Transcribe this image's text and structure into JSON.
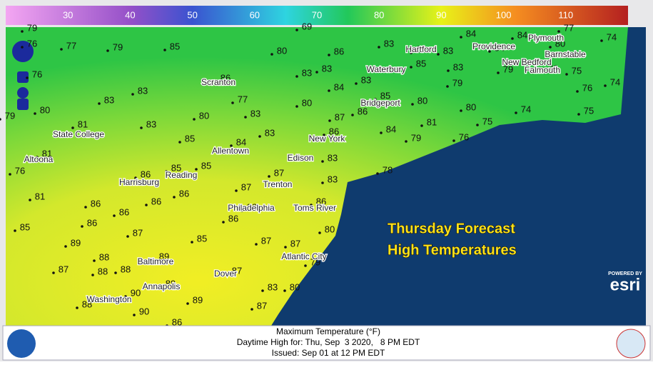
{
  "legend": {
    "ticks": [
      30,
      40,
      50,
      60,
      70,
      80,
      90,
      100,
      110
    ],
    "range": [
      20,
      120
    ]
  },
  "map": {
    "stations": [
      79,
      76,
      77,
      79,
      85,
      69,
      80,
      86,
      83,
      86,
      83,
      84,
      84,
      84,
      77,
      80,
      74,
      76,
      80,
      79,
      81,
      83,
      83,
      83,
      86,
      77,
      80,
      83,
      85,
      84,
      83,
      80,
      83,
      83,
      84,
      87,
      86,
      86,
      83,
      85,
      80,
      83,
      85,
      79,
      79,
      78,
      75,
      76,
      74,
      80,
      74,
      75,
      81,
      75,
      84,
      79,
      76,
      78,
      81,
      76,
      86,
      85,
      85,
      87,
      83,
      83,
      86,
      87,
      81,
      86,
      86,
      86,
      88,
      86,
      86,
      85,
      86,
      87,
      85,
      80,
      89,
      87,
      87,
      88,
      89,
      88,
      88,
      87,
      87,
      79,
      89,
      83,
      80,
      90,
      89,
      88,
      87,
      90,
      86
    ],
    "cities": [
      "Scranton",
      "State College",
      "Allentown",
      "New York",
      "Edison",
      "Altoona",
      "Harrisburg",
      "Reading",
      "Trenton",
      "Philadelphia",
      "Toms River",
      "Atlantic City",
      "Baltimore",
      "Annapolis",
      "Washington",
      "Dover",
      "Hartford",
      "Waterbury",
      "Bridgeport",
      "Providence",
      "New Bedford",
      "Plymouth",
      "Barnstable",
      "Falmouth"
    ]
  },
  "overlay": {
    "line1": "Thursday Forecast",
    "line2": "High Temperatures"
  },
  "esri": {
    "powered": "POWERED BY",
    "brand": "esri"
  },
  "footer": {
    "title": "Maximum Temperature (°F)",
    "valid": "Daytime High for: Thu, Sep  3 2020,   8 PM EDT",
    "issued": "Issued: Sep 01 at 12 PM EDT"
  }
}
